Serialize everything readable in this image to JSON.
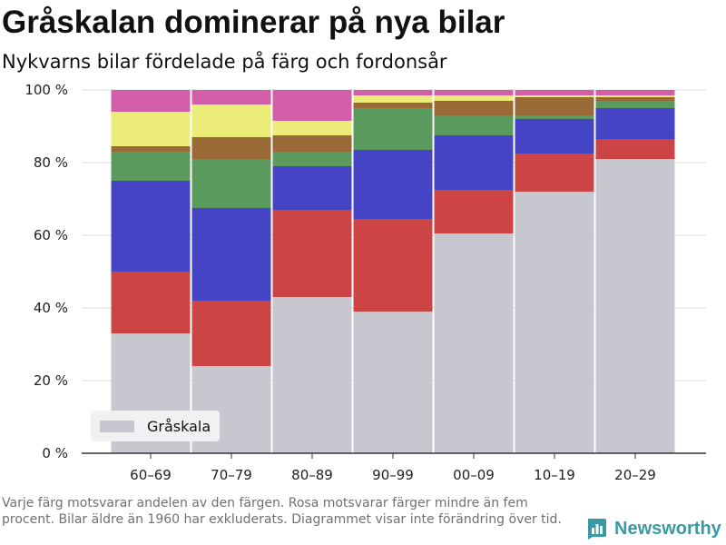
{
  "title": "Gråskalan dominerar på nya bilar",
  "subtitle": "Nykvarns bilar fördelade på färg och fordonsår",
  "footnote": "Varje färg motsvarar andelen av den färgen. Rosa motsvarar färger mindre än fem procent. Bilar äldre än 1960 har exkluderats. Diagrammet visar inte förändring över tid.",
  "brand": {
    "name": "Newsworthy",
    "icon": "bar-chart-logo-icon",
    "color": "#3a9aa3"
  },
  "legend": {
    "label": "Gråskala",
    "color": "#c7c7cf",
    "placement": "bottom-left"
  },
  "chart_data": {
    "type": "bar",
    "stacked": true,
    "categories": [
      "60–69",
      "70–79",
      "80–89",
      "90–99",
      "00–09",
      "10–19",
      "20–29"
    ],
    "ylim": [
      0,
      100
    ],
    "yticks": [
      0,
      20,
      40,
      60,
      80,
      100
    ],
    "ytick_labels": [
      "0 %",
      "20 %",
      "40 %",
      "60 %",
      "80 %",
      "100 %"
    ],
    "grid": true,
    "series": [
      {
        "name": "Gråskala",
        "color": "#c7c7cf",
        "values": [
          33,
          24,
          43,
          39,
          60.5,
          72,
          81
        ]
      },
      {
        "color": "#cc4444",
        "values": [
          17,
          18,
          24,
          25.5,
          12,
          10.5,
          5.5
        ]
      },
      {
        "color": "#4444c4",
        "values": [
          25,
          25.5,
          12,
          19,
          15,
          9.5,
          8.5
        ]
      },
      {
        "color": "#5a9a5e",
        "values": [
          8,
          13.5,
          4,
          11.5,
          5.5,
          1,
          2
        ]
      },
      {
        "color": "#9a6a36",
        "values": [
          1.5,
          6,
          4.5,
          1.5,
          4,
          5,
          1
        ]
      },
      {
        "color": "#ecec78",
        "values": [
          9.5,
          9,
          4,
          2,
          1.5,
          0.5,
          0.5
        ]
      },
      {
        "color": "#d35fa8",
        "values": [
          6,
          4,
          8.5,
          1.5,
          1.5,
          1.5,
          1.5
        ]
      }
    ]
  }
}
